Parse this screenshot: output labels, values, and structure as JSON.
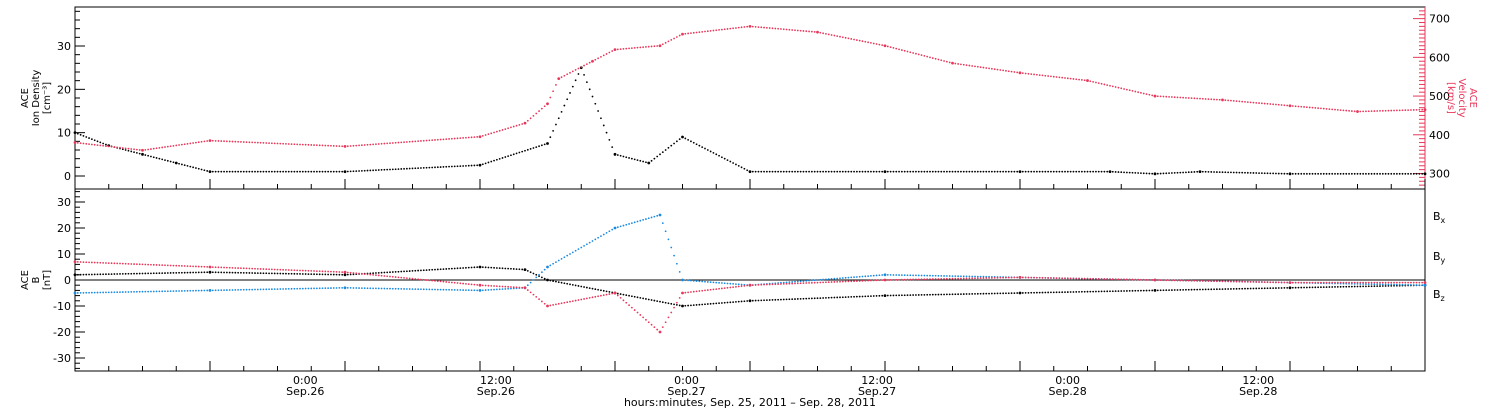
{
  "colors": {
    "black": "#000000",
    "red": "#e8375a",
    "blue": "#1a8ae0"
  },
  "chart_data": [
    {
      "type": "scatter",
      "panel": "top",
      "ylabel_left": [
        "ACE",
        "Ion Density",
        "[cm⁻³]"
      ],
      "ylabel_right": [
        "ACE",
        "Velocity",
        "[km/s]"
      ],
      "ylim_left": [
        -3,
        39
      ],
      "yticks_left": [
        0,
        10,
        20,
        30
      ],
      "ylim_right": [
        260,
        730
      ],
      "yticks_right": [
        300,
        400,
        500,
        600,
        700
      ],
      "series": [
        {
          "axis": "left",
          "color": "#000000",
          "x": [
            0,
            3,
            6,
            9,
            12,
            24,
            36,
            42,
            45,
            48,
            51,
            54,
            60,
            72,
            84,
            92,
            96,
            100,
            108,
            120
          ],
          "y": [
            10,
            7,
            5,
            3,
            1,
            1,
            2.5,
            7.5,
            25,
            5,
            3,
            9,
            1,
            1,
            1,
            1,
            0.5,
            1,
            0.5,
            0.5
          ]
        },
        {
          "axis": "right",
          "color": "#e8375a",
          "x": [
            0,
            6,
            12,
            24,
            36,
            40,
            42,
            43,
            46,
            48,
            52,
            54,
            60,
            66,
            72,
            78,
            84,
            90,
            96,
            102,
            108,
            114,
            120
          ],
          "y": [
            380,
            360,
            385,
            370,
            395,
            430,
            480,
            545,
            590,
            620,
            630,
            660,
            680,
            665,
            630,
            585,
            560,
            540,
            500,
            490,
            475,
            460,
            465
          ]
        }
      ]
    },
    {
      "type": "scatter",
      "panel": "bottom",
      "ylabel_left": [
        "ACE",
        "B",
        "[nT]"
      ],
      "ylim": [
        -35,
        35
      ],
      "yticks": [
        -30,
        -20,
        -10,
        0,
        10,
        20,
        30
      ],
      "x_tick_labels": [
        {
          "time": "0:00",
          "date": "Sep.26"
        },
        {
          "time": "12:00",
          "date": "Sep.26"
        },
        {
          "time": "0:00",
          "date": "Sep.27"
        },
        {
          "time": "12:00",
          "date": "Sep.27"
        },
        {
          "time": "0:00",
          "date": "Sep.28"
        },
        {
          "time": "12:00",
          "date": "Sep.28"
        }
      ],
      "xlabel": "hours:minutes, Sep. 25, 2011 – Sep. 28, 2011",
      "legend": [
        "B_x",
        "B_y",
        "B_z"
      ],
      "series": [
        {
          "name": "B_x",
          "color": "#000000",
          "x": [
            0,
            12,
            24,
            36,
            40,
            42,
            48,
            54,
            60,
            72,
            84,
            96,
            108,
            120
          ],
          "y": [
            2,
            3,
            2,
            5,
            4,
            0,
            -5,
            -10,
            -8,
            -6,
            -5,
            -4,
            -3,
            -2
          ]
        },
        {
          "name": "B_y",
          "color": "#1a8ae0",
          "x": [
            0,
            12,
            24,
            36,
            40,
            42,
            48,
            52,
            54,
            60,
            72,
            84,
            96,
            108,
            120
          ],
          "y": [
            -5,
            -4,
            -3,
            -4,
            -3,
            5,
            20,
            25,
            0,
            -2,
            2,
            1,
            0,
            -1,
            -2
          ]
        },
        {
          "name": "B_z",
          "color": "#e8375a",
          "x": [
            0,
            12,
            24,
            36,
            40,
            42,
            48,
            52,
            54,
            60,
            72,
            84,
            96,
            108,
            120
          ],
          "y": [
            7,
            5,
            3,
            -2,
            -3,
            -10,
            -5,
            -20,
            -5,
            -2,
            0,
            1,
            0,
            -1,
            -1
          ]
        }
      ]
    }
  ]
}
